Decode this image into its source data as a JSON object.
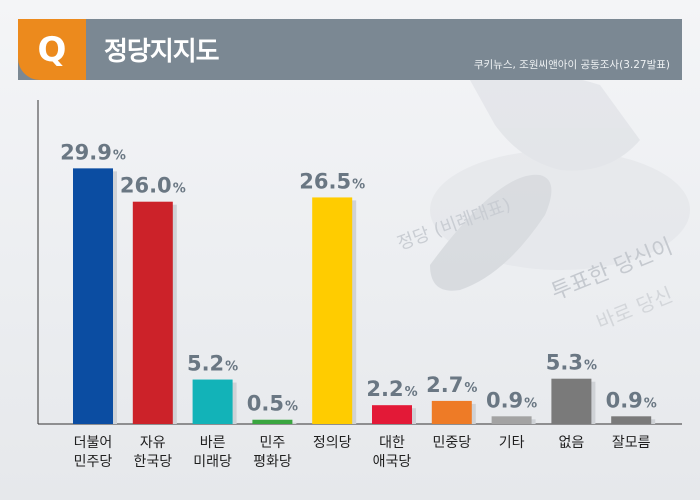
{
  "header": {
    "q_label": "Q",
    "title": "정당지지도",
    "source": "쿠키뉴스, 조원씨앤아이 공동조사(3.27발표)"
  },
  "background_text": [
    "정당 (비례대표)",
    "투표한 당신이",
    "바로 당신"
  ],
  "colors": {
    "header": "#7b8893",
    "accent": "#ec8a1d"
  },
  "chart_data": {
    "type": "bar",
    "title": "정당지지도",
    "xlabel": "",
    "ylabel": "",
    "ylim": [
      0,
      30
    ],
    "grid": false,
    "value_suffix": "%",
    "categories": [
      [
        "더불어",
        "민주당"
      ],
      [
        "자유",
        "한국당"
      ],
      [
        "바른",
        "미래당"
      ],
      [
        "민주",
        "평화당"
      ],
      [
        "정의당"
      ],
      [
        "대한",
        "애국당"
      ],
      [
        "민중당"
      ],
      [
        "기타"
      ],
      [
        "없음"
      ],
      [
        "잘모름"
      ]
    ],
    "values": [
      29.9,
      26.0,
      5.2,
      0.5,
      26.5,
      2.2,
      2.7,
      0.9,
      5.3,
      0.9
    ],
    "value_labels": [
      "29.9",
      "26.0",
      "5.2",
      "0.5",
      "26.5",
      "2.2",
      "2.7",
      "0.9",
      "5.3",
      "0.9"
    ],
    "bar_colors": [
      "#0b4da2",
      "#cc2229",
      "#12b3b8",
      "#3aa640",
      "#ffcc00",
      "#e31937",
      "#ee7b26",
      "#a3a3a3",
      "#7a7a7a",
      "#7a7a7a"
    ]
  }
}
